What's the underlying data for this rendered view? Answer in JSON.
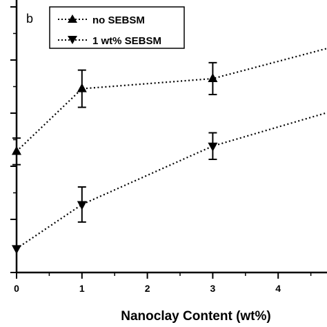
{
  "chart_data": {
    "type": "line",
    "panel_label": "b",
    "xlabel": "Nanoclay Content (wt%)",
    "ylabel": "",
    "x_ticks": [
      "0",
      "1",
      "2",
      "3",
      "4"
    ],
    "xlim": [
      0,
      5
    ],
    "ylim": [
      0,
      5
    ],
    "y_tick_values": [
      0,
      1,
      2,
      3,
      4,
      5
    ],
    "y_tick_labels_visible": false,
    "grid": false,
    "legend_position": "top-left",
    "series": [
      {
        "name": "no SEBSM",
        "marker": "triangle-up",
        "color": "#000000",
        "points": [
          {
            "x": 0,
            "y": 2.28,
            "err": 0.25
          },
          {
            "x": 1,
            "y": 3.46,
            "err": 0.35
          },
          {
            "x": 3,
            "y": 3.65,
            "err": 0.3
          },
          {
            "x": 5,
            "y": 4.3
          }
        ]
      },
      {
        "name": "1 wt% SEBSM",
        "marker": "triangle-down",
        "color": "#000000",
        "points": [
          {
            "x": 0,
            "y": 0.45
          },
          {
            "x": 1,
            "y": 1.28,
            "err": 0.33
          },
          {
            "x": 3,
            "y": 2.38,
            "err": 0.25
          },
          {
            "x": 5,
            "y": 3.1
          }
        ]
      }
    ]
  }
}
